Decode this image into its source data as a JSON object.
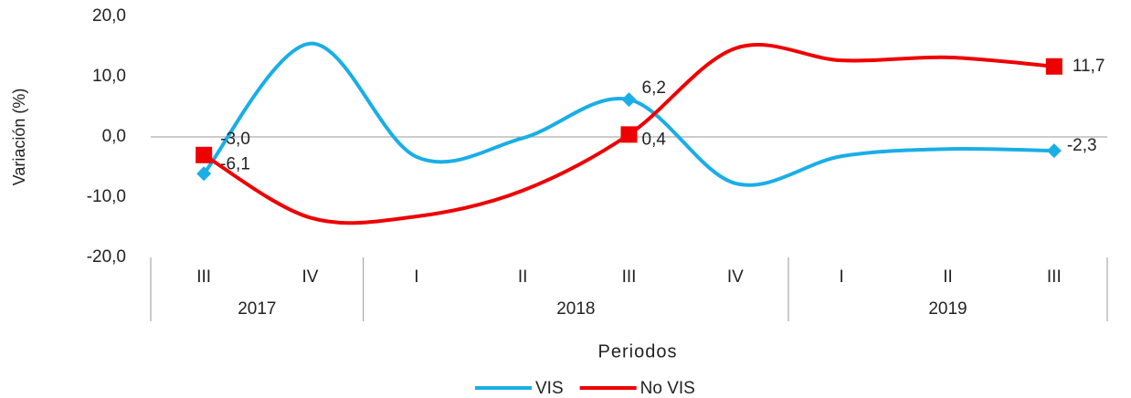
{
  "chart_data": {
    "type": "line",
    "x_label": "Periodos",
    "y_label": "Variación (%)",
    "categories": [
      "III",
      "IV",
      "I",
      "II",
      "III",
      "IV",
      "I",
      "II",
      "III"
    ],
    "groups": [
      {
        "label": "2017",
        "count": 2
      },
      {
        "label": "2018",
        "count": 4
      },
      {
        "label": "2019",
        "count": 3
      }
    ],
    "series": [
      {
        "name": "VIS",
        "color": "#1aaee6",
        "marker": "diamond",
        "values": [
          -6.1,
          15.5,
          -3.3,
          -0.2,
          6.2,
          -7.7,
          -3.2,
          -2.0,
          -2.3
        ],
        "value_labels": [
          "-6,1",
          null,
          null,
          null,
          "6,2",
          null,
          null,
          null,
          "-2,3"
        ]
      },
      {
        "name": "No VIS",
        "color": "#ee0000",
        "marker": "square",
        "values": [
          -3.0,
          -13.4,
          -13.2,
          -8.9,
          0.4,
          14.7,
          12.7,
          13.2,
          11.7
        ],
        "value_labels": [
          "-3,0",
          null,
          null,
          null,
          "0,4",
          null,
          null,
          null,
          "11,7"
        ]
      }
    ],
    "ylim": [
      -20,
      20
    ],
    "yticks": [
      {
        "value": -20,
        "label": "-20,0"
      },
      {
        "value": -10,
        "label": "-10,0"
      },
      {
        "value": 0,
        "label": "0,0"
      },
      {
        "value": 10,
        "label": "10,0"
      },
      {
        "value": 20,
        "label": "20,0"
      }
    ],
    "zero_line": true,
    "legend": "bottom"
  }
}
